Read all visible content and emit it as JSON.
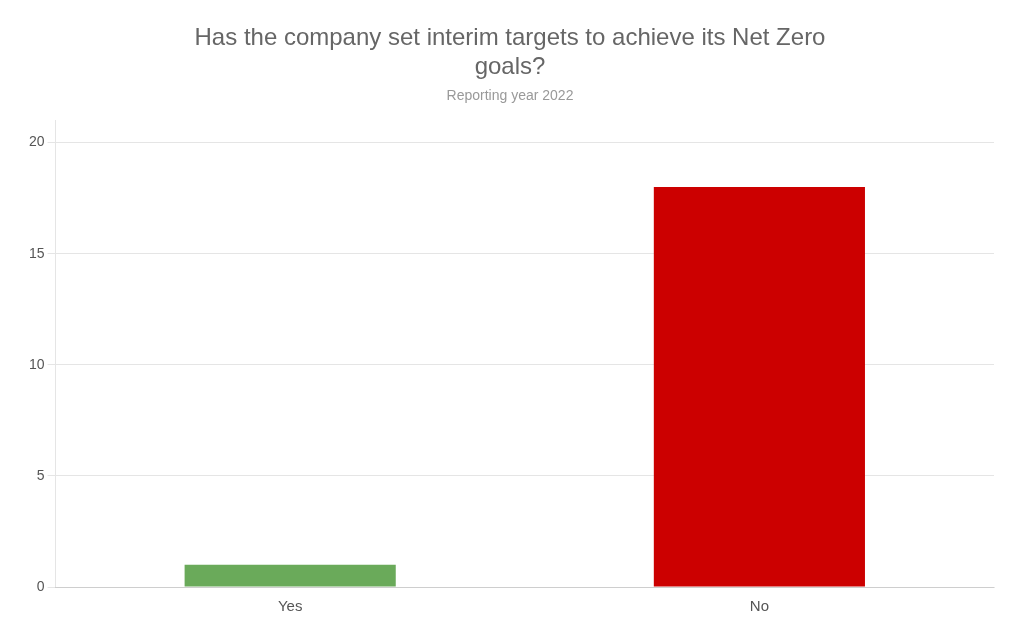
{
  "chart_data": {
    "type": "bar",
    "title": "Has the company set interim targets to achieve its Net Zero\ngoals?",
    "subtitle": "Reporting year 2022",
    "categories": [
      "Yes",
      "No"
    ],
    "values": [
      1,
      18
    ],
    "colors": [
      "#6aaa5a",
      "#cc0000"
    ],
    "ylim": [
      0,
      21
    ],
    "yticks": [
      0,
      5,
      10,
      15,
      20
    ],
    "grid": true
  }
}
